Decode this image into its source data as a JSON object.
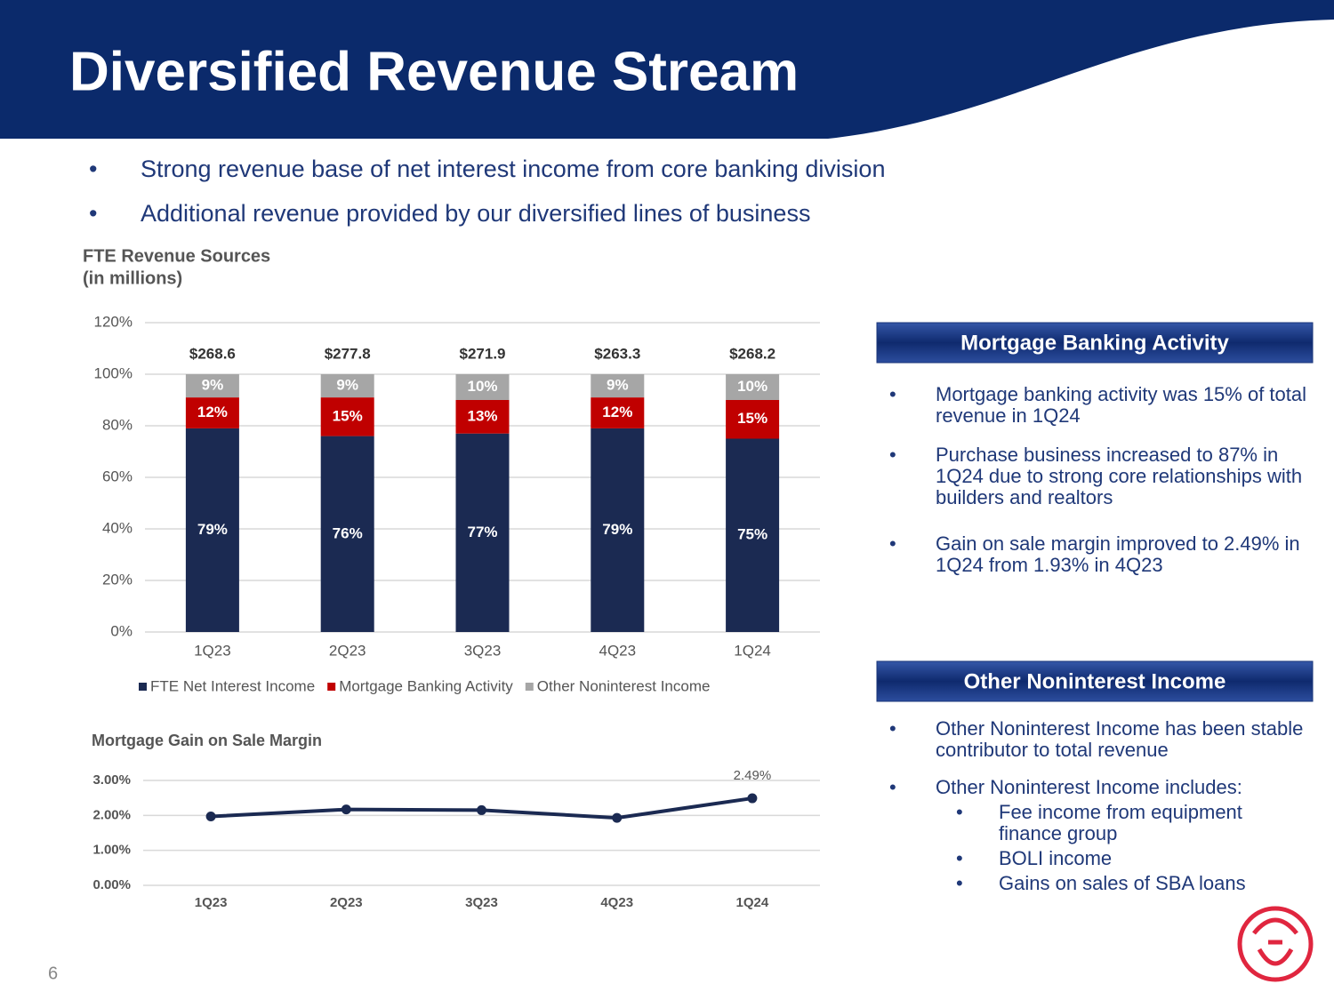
{
  "header": {
    "title": "Diversified Revenue Stream"
  },
  "bullets": [
    "Strong revenue base of net interest income from core banking division",
    "Additional revenue provided by our diversified lines of business"
  ],
  "chart_data": [
    {
      "type": "bar",
      "stacked": true,
      "title": "FTE Revenue Sources",
      "subtitle": "(in millions)",
      "categories": [
        "1Q23",
        "2Q23",
        "3Q23",
        "4Q23",
        "1Q24"
      ],
      "series": [
        {
          "name": "FTE Net Interest Income",
          "color": "#1b2a52",
          "values": [
            79,
            76,
            77,
            79,
            75
          ],
          "value_labels": [
            "79%",
            "76%",
            "77%",
            "79%",
            "75%"
          ]
        },
        {
          "name": "Mortgage Banking Activity",
          "color": "#c00000",
          "values": [
            12,
            15,
            13,
            12,
            15
          ],
          "value_labels": [
            "12%",
            "15%",
            "13%",
            "12%",
            "15%"
          ]
        },
        {
          "name": "Other Noninterest Income",
          "color": "#a6a6a6",
          "values": [
            9,
            9,
            10,
            9,
            10
          ],
          "value_labels": [
            "9%",
            "9%",
            "10%",
            "9%",
            "10%"
          ]
        }
      ],
      "annotations": [
        "$268.6",
        "$277.8",
        "$271.9",
        "$263.3",
        "$268.2"
      ],
      "ylim": [
        0,
        120
      ],
      "yticks": [
        {
          "value": 0,
          "label": "0%"
        },
        {
          "value": 20,
          "label": "20%"
        },
        {
          "value": 40,
          "label": "40%"
        },
        {
          "value": 60,
          "label": "60%"
        },
        {
          "value": 80,
          "label": "80%"
        },
        {
          "value": 100,
          "label": "100%"
        },
        {
          "value": 120,
          "label": "120%"
        }
      ],
      "grid": true,
      "legend": "bottom"
    },
    {
      "type": "line",
      "title": "Mortgage Gain on Sale Margin",
      "categories": [
        "1Q23",
        "2Q23",
        "3Q23",
        "4Q23",
        "1Q24"
      ],
      "values": [
        1.97,
        2.17,
        2.15,
        1.93,
        2.49
      ],
      "value_labels": [
        null,
        null,
        null,
        null,
        "2.49%"
      ],
      "color": "#1b2a52",
      "ylim": [
        0,
        3
      ],
      "yticks": [
        {
          "value": 0,
          "label": "0.00%"
        },
        {
          "value": 1,
          "label": "1.00%"
        },
        {
          "value": 2,
          "label": "2.00%"
        },
        {
          "value": 3,
          "label": "3.00%"
        }
      ],
      "grid": true
    }
  ],
  "panels": [
    {
      "heading": "Mortgage Banking Activity",
      "bullets": [
        "Mortgage banking activity was 15% of total revenue in 1Q24",
        "Purchase business increased to 87% in 1Q24 due to strong core relationships with builders and realtors",
        "Gain on sale margin improved to 2.49% in 1Q24 from 1.93% in 4Q23"
      ]
    },
    {
      "heading": "Other Noninterest Income",
      "bullets": [
        "Other Noninterest Income has been stable contributor to total revenue",
        "Other Noninterest Income includes:"
      ],
      "sub_bullets": [
        "Fee income from equipment finance group",
        "BOLI income",
        "Gains on sales of SBA loans"
      ]
    }
  ],
  "page_number": "6"
}
